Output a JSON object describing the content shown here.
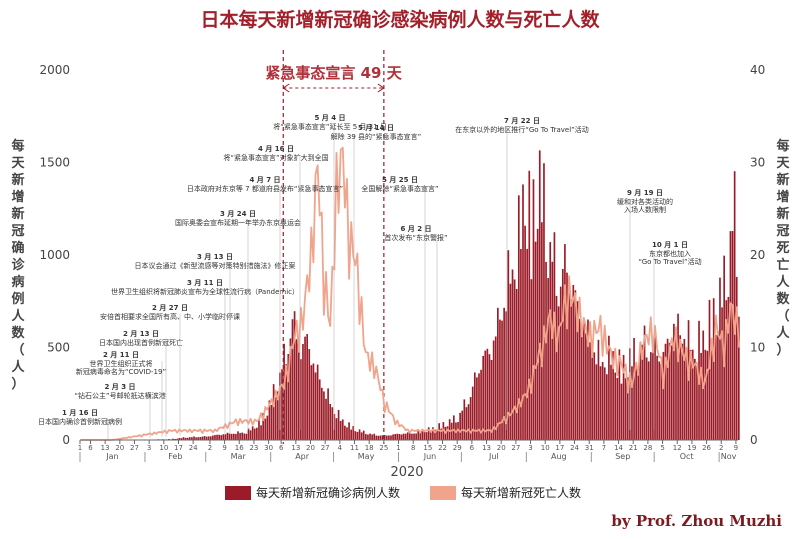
{
  "chart_data": {
    "type": "bar+line",
    "title": "日本每天新增新冠确诊感染病例人数与死亡人数",
    "xlabel": "2020",
    "ylabel_left": "每天新增新冠确诊病例人数（人）",
    "ylabel_right": "每天新增新冠死亡人数（人）",
    "ylim_left": [
      0,
      2000
    ],
    "ylim_right": [
      0,
      40
    ],
    "yticks_left": [
      "0",
      "500",
      "1000",
      "1500",
      "2000"
    ],
    "yticks_right": [
      "0",
      "10",
      "20",
      "30",
      "40"
    ],
    "x_range": [
      "2020-01-01",
      "2020-11-10"
    ],
    "x_ticks": [
      "1",
      "6",
      "13",
      "20",
      "27",
      "3",
      "10",
      "17",
      "24",
      "2",
      "9",
      "16",
      "23",
      "30",
      "6",
      "13",
      "20",
      "27",
      "4",
      "11",
      "18",
      "25",
      "1",
      "8",
      "15",
      "22",
      "29",
      "6",
      "13",
      "20",
      "27",
      "3",
      "10",
      "17",
      "24",
      "31",
      "7",
      "14",
      "21",
      "28",
      "5",
      "12",
      "19",
      "26",
      "2",
      "9"
    ],
    "months": [
      "Jan",
      "Feb",
      "Mar",
      "Apr",
      "May",
      "Jun",
      "Jul",
      "Aug",
      "Sep",
      "Oct",
      "Nov"
    ],
    "emergency": {
      "label": "紧急事态宣言 49 天",
      "start": "2020-04-07",
      "end": "2020-05-25"
    },
    "series": [
      {
        "name": "每天新增新冠确诊病例人数",
        "kind": "bar",
        "color": "#9b1c28",
        "points": [
          [
            "2020-01-16",
            1
          ],
          [
            "2020-02-01",
            2
          ],
          [
            "2020-02-13",
            5
          ],
          [
            "2020-02-20",
            15
          ],
          [
            "2020-03-01",
            20
          ],
          [
            "2020-03-10",
            35
          ],
          [
            "2020-03-20",
            45
          ],
          [
            "2020-03-27",
            110
          ],
          [
            "2020-04-01",
            230
          ],
          [
            "2020-04-05",
            380
          ],
          [
            "2020-04-08",
            500
          ],
          [
            "2020-04-11",
            680
          ],
          [
            "2020-04-15",
            520
          ],
          [
            "2020-04-18",
            570
          ],
          [
            "2020-04-22",
            400
          ],
          [
            "2020-04-26",
            300
          ],
          [
            "2020-04-30",
            190
          ],
          [
            "2020-05-05",
            110
          ],
          [
            "2020-05-10",
            70
          ],
          [
            "2020-05-15",
            45
          ],
          [
            "2020-05-20",
            30
          ],
          [
            "2020-05-25",
            25
          ],
          [
            "2020-06-01",
            35
          ],
          [
            "2020-06-08",
            40
          ],
          [
            "2020-06-15",
            60
          ],
          [
            "2020-06-22",
            90
          ],
          [
            "2020-06-29",
            130
          ],
          [
            "2020-07-05",
            260
          ],
          [
            "2020-07-10",
            450
          ],
          [
            "2020-07-15",
            520
          ],
          [
            "2020-07-20",
            750
          ],
          [
            "2020-07-24",
            950
          ],
          [
            "2020-07-28",
            1150
          ],
          [
            "2020-07-31",
            1500
          ],
          [
            "2020-08-03",
            1200
          ],
          [
            "2020-08-06",
            1550
          ],
          [
            "2020-08-08",
            1420
          ],
          [
            "2020-08-12",
            1100
          ],
          [
            "2020-08-16",
            900
          ],
          [
            "2020-08-20",
            1000
          ],
          [
            "2020-08-25",
            750
          ],
          [
            "2020-08-30",
            600
          ],
          [
            "2020-09-05",
            450
          ],
          [
            "2020-09-10",
            500
          ],
          [
            "2020-09-15",
            420
          ],
          [
            "2020-09-20",
            480
          ],
          [
            "2020-09-25",
            560
          ],
          [
            "2020-09-30",
            520
          ],
          [
            "2020-10-05",
            480
          ],
          [
            "2020-10-10",
            650
          ],
          [
            "2020-10-15",
            600
          ],
          [
            "2020-10-20",
            520
          ],
          [
            "2020-10-25",
            620
          ],
          [
            "2020-10-30",
            750
          ],
          [
            "2020-11-03",
            900
          ],
          [
            "2020-11-06",
            1150
          ],
          [
            "2020-11-08",
            1300
          ],
          [
            "2020-11-10",
            850
          ]
        ]
      },
      {
        "name": "每天新增新冠死亡人数",
        "kind": "line",
        "color": "#f0a48c",
        "points": [
          [
            "2020-01-16",
            0
          ],
          [
            "2020-02-13",
            1
          ],
          [
            "2020-02-25",
            1
          ],
          [
            "2020-03-05",
            1
          ],
          [
            "2020-03-15",
            2
          ],
          [
            "2020-03-25",
            2
          ],
          [
            "2020-04-01",
            4
          ],
          [
            "2020-04-07",
            6
          ],
          [
            "2020-04-12",
            11
          ],
          [
            "2020-04-16",
            13
          ],
          [
            "2020-04-20",
            20
          ],
          [
            "2020-04-23",
            29
          ],
          [
            "2020-04-26",
            18
          ],
          [
            "2020-04-29",
            12
          ],
          [
            "2020-05-02",
            27
          ],
          [
            "2020-05-05",
            30
          ],
          [
            "2020-05-08",
            22
          ],
          [
            "2020-05-12",
            18
          ],
          [
            "2020-05-16",
            9
          ],
          [
            "2020-05-20",
            8
          ],
          [
            "2020-05-25",
            4
          ],
          [
            "2020-05-30",
            2
          ],
          [
            "2020-06-05",
            1
          ],
          [
            "2020-06-15",
            1
          ],
          [
            "2020-06-25",
            1
          ],
          [
            "2020-07-05",
            1
          ],
          [
            "2020-07-15",
            1
          ],
          [
            "2020-07-25",
            3
          ],
          [
            "2020-08-01",
            5
          ],
          [
            "2020-08-08",
            10
          ],
          [
            "2020-08-12",
            13
          ],
          [
            "2020-08-16",
            11
          ],
          [
            "2020-08-20",
            16
          ],
          [
            "2020-08-25",
            14
          ],
          [
            "2020-08-30",
            11
          ],
          [
            "2020-09-05",
            12
          ],
          [
            "2020-09-10",
            9
          ],
          [
            "2020-09-15",
            8
          ],
          [
            "2020-09-20",
            6
          ],
          [
            "2020-09-25",
            10
          ],
          [
            "2020-09-30",
            12
          ],
          [
            "2020-10-05",
            7
          ],
          [
            "2020-10-10",
            11
          ],
          [
            "2020-10-15",
            9
          ],
          [
            "2020-10-20",
            8
          ],
          [
            "2020-10-25",
            6
          ],
          [
            "2020-10-30",
            12
          ],
          [
            "2020-11-03",
            10
          ],
          [
            "2020-11-06",
            14
          ],
          [
            "2020-11-10",
            12
          ]
        ]
      }
    ],
    "annotations": [
      {
        "date": "1 月 16 日",
        "text": "日本国内确诊首例新冠病例"
      },
      {
        "date": "2 月 3 日",
        "text": "“钻石公主”号邮轮抵达横滨港"
      },
      {
        "date": "2 月 11 日",
        "text": "世界卫生组织正式将\n新冠病毒命名为“COVID-19”"
      },
      {
        "date": "2 月 13 日",
        "text": "日本国内出现首例新冠死亡"
      },
      {
        "date": "2 月 27 日",
        "text": "安倍首相要求全国所有高、中、小学临时停课"
      },
      {
        "date": "3 月 11 日",
        "text": "世界卫生组织将新冠肺炎宣布为全球性流行病（Pandemic）"
      },
      {
        "date": "3 月 13 日",
        "text": "日本议会通过《新型流感等对策特别措施法》修正案"
      },
      {
        "date": "3 月 24 日",
        "text": "国际奥委会宣布延期一年举办东京奥运会"
      },
      {
        "date": "4 月 7 日",
        "text": "日本政府对东京等 7 都道府县发布“紧急事态宣言”"
      },
      {
        "date": "4 月 16 日",
        "text": "将“紧急事态宣言”对象扩大到全国"
      },
      {
        "date": "5 月 4 日",
        "text": "将“紧急事态宣言”延长至 5 月 31 日"
      },
      {
        "date": "5 月 14 日",
        "text": "解除 39 县的“紧急事态宣言”"
      },
      {
        "date": "5 月 25 日",
        "text": "全国解除“紧急事态宣言”"
      },
      {
        "date": "6 月 2 日",
        "text": "首次发布“东京警报”"
      },
      {
        "date": "7 月 22 日",
        "text": "在东京以外的地区推行“Go To Travel”活动"
      },
      {
        "date": "9 月 19 日",
        "text": "缓和对各类活动的\n入场人数限制"
      },
      {
        "date": "10 月 1 日",
        "text": "东京都也加入\n“Go To Travel”活动"
      }
    ],
    "credit": "by Prof. Zhou Muzhi",
    "grid": false,
    "legend_position": "bottom"
  }
}
